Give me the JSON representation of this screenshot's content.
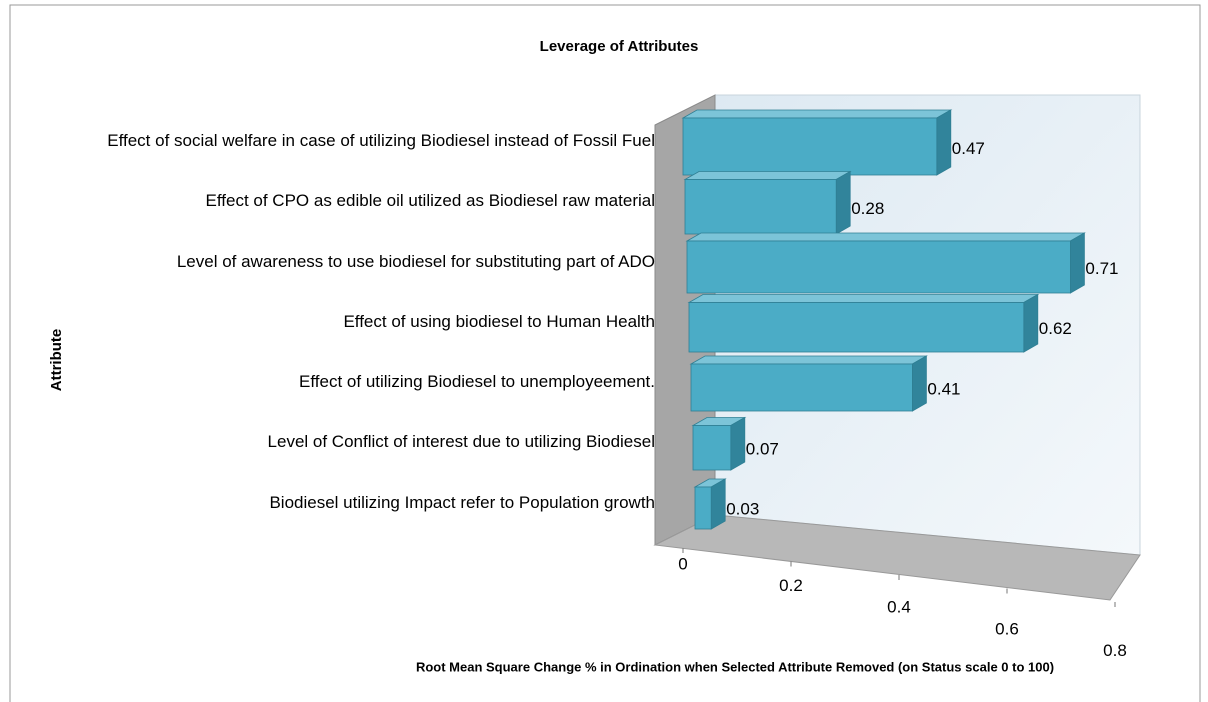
{
  "chart_data": {
    "type": "bar3d",
    "title": "Leverage of Attributes",
    "x_label": "Root Mean Square Change % in Ordination when Selected Attribute Removed (on Status scale 0 to 100)",
    "y_label": "Attribute",
    "categories": [
      "Effect of social welfare in case of utilizing Biodiesel instead of Fossil Fuel",
      "Effect of CPO as edible oil utilized as Biodiesel raw material",
      "Level of awareness to use biodiesel for substituting part of ADO",
      "Effect of using biodiesel to Human Health",
      "Effect of utilizing Biodiesel to unemployeement.",
      "Level of Conflict of interest due to utilizing Biodiesel",
      "Biodiesel utilizing Impact refer to Population growth"
    ],
    "values": [
      0.47,
      0.28,
      0.71,
      0.62,
      0.41,
      0.07,
      0.03
    ],
    "color": "#4bacc6",
    "xlim": [
      0,
      0.8
    ],
    "xticks": [
      0,
      0.2,
      0.4,
      0.6,
      0.8
    ]
  }
}
